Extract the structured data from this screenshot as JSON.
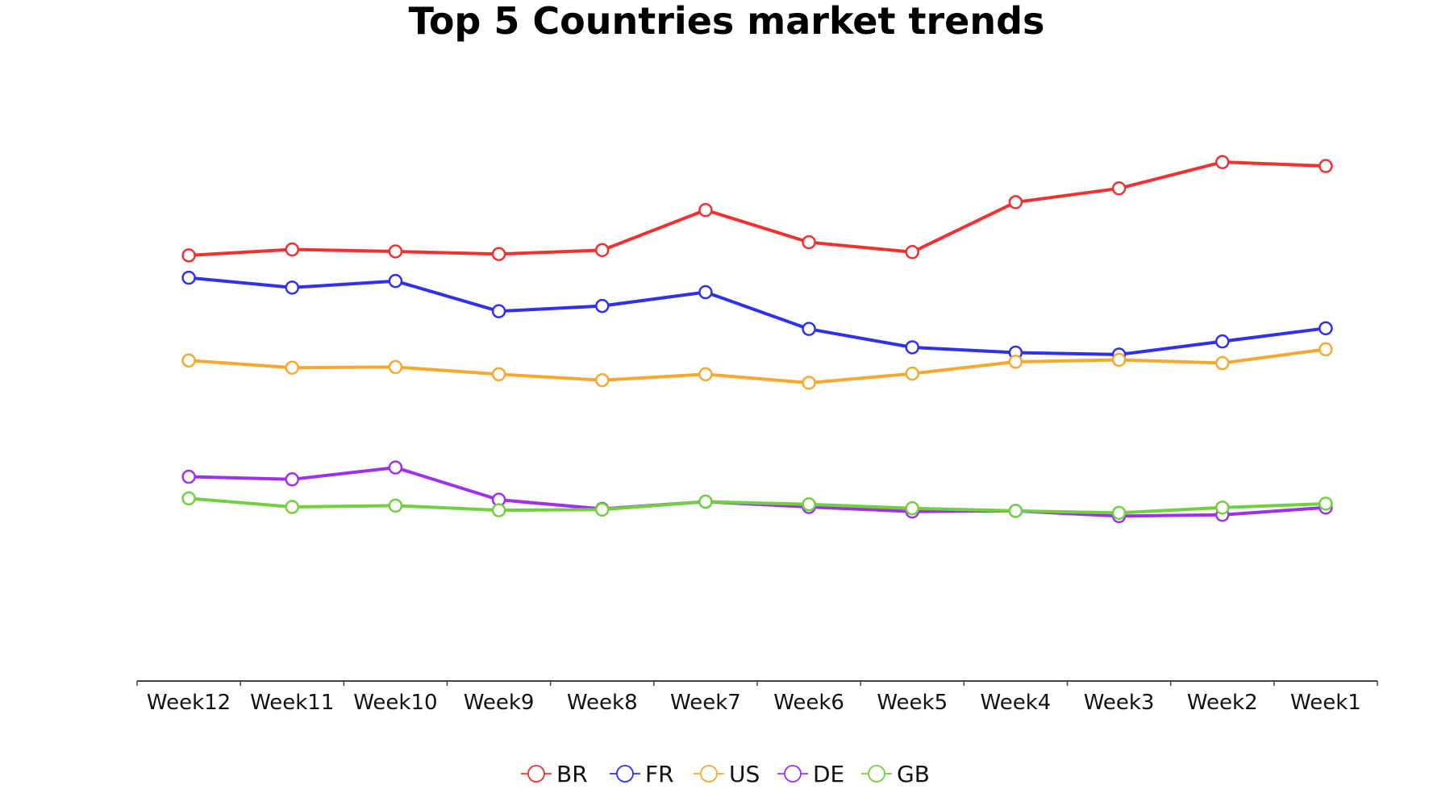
{
  "chart_data": {
    "type": "line",
    "title": "Top 5 Countries market trends",
    "xlabel": "",
    "ylabel": "",
    "categories": [
      "Week12",
      "Week11",
      "Week10",
      "Week9",
      "Week8",
      "Week7",
      "Week6",
      "Week5",
      "Week4",
      "Week3",
      "Week2",
      "Week1"
    ],
    "ylim": [
      0,
      100
    ],
    "y_axis_visible": false,
    "grid": false,
    "legend_position": "bottom",
    "series": [
      {
        "name": "BR",
        "color": "#f23030",
        "values": [
          64.8,
          65.7,
          65.4,
          65.0,
          65.6,
          71.7,
          66.8,
          65.3,
          72.9,
          75.0,
          79.0,
          78.4
        ]
      },
      {
        "name": "FR",
        "color": "#3030f0",
        "values": [
          61.4,
          59.9,
          60.9,
          56.3,
          57.1,
          59.2,
          53.6,
          50.8,
          50.0,
          49.7,
          51.7,
          53.7
        ]
      },
      {
        "name": "US",
        "color": "#f8a830",
        "values": [
          48.8,
          47.7,
          47.8,
          46.7,
          45.8,
          46.7,
          45.4,
          46.8,
          48.6,
          48.9,
          48.4,
          50.5
        ]
      },
      {
        "name": "DE",
        "color": "#a030f0",
        "values": [
          31.1,
          30.7,
          32.5,
          27.6,
          26.2,
          27.3,
          26.5,
          25.8,
          25.9,
          25.1,
          25.3,
          26.4
        ]
      },
      {
        "name": "GB",
        "color": "#70d040",
        "values": [
          27.8,
          26.5,
          26.7,
          26.0,
          26.1,
          27.3,
          26.9,
          26.3,
          25.9,
          25.6,
          26.4,
          27.0
        ]
      }
    ]
  }
}
